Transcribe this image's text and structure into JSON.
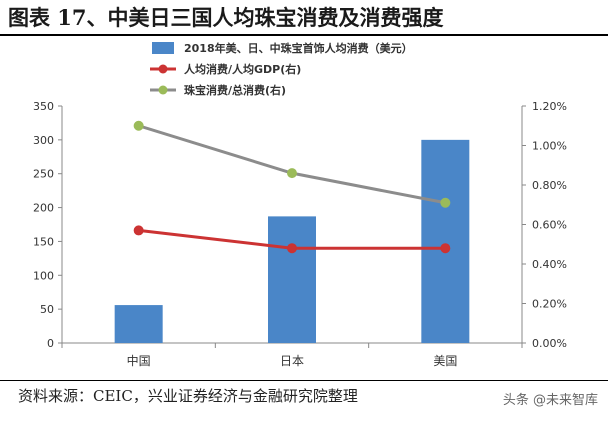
{
  "figure": {
    "title": "图表 17、中美日三国人均珠宝消费及消费强度",
    "source": "资料来源：CEIC，兴业证券经济与金融研究院整理",
    "watermark": "头条 @未来智库"
  },
  "chart_data": {
    "type": "bar",
    "categories": [
      "中国",
      "日本",
      "美国"
    ],
    "series": [
      {
        "name": "2018年美、日、中珠宝首饰人均消费（美元）",
        "type": "bar",
        "axis": "left",
        "color": "#4a86c8",
        "values": [
          56,
          187,
          300
        ]
      },
      {
        "name": "人均消费/人均GDP(右)",
        "type": "line",
        "axis": "right",
        "color": "#cc3333",
        "values": [
          0.0057,
          0.0048,
          0.0048
        ]
      },
      {
        "name": "珠宝消费/总消费(右)",
        "type": "line",
        "axis": "right",
        "color": "#8c8c8c",
        "values": [
          0.011,
          0.0086,
          0.0071
        ]
      }
    ],
    "y_left": {
      "range": [
        0,
        350
      ],
      "ticks": [
        0,
        50,
        100,
        150,
        200,
        250,
        300,
        350
      ]
    },
    "y_right": {
      "range": [
        0,
        0.012
      ],
      "ticks": [
        0,
        0.002,
        0.004,
        0.006,
        0.008,
        0.01,
        0.012
      ],
      "tick_labels": [
        "0.00%",
        "0.20%",
        "0.40%",
        "0.60%",
        "0.80%",
        "1.00%",
        "1.20%"
      ]
    },
    "grid": false,
    "legend": "top"
  }
}
